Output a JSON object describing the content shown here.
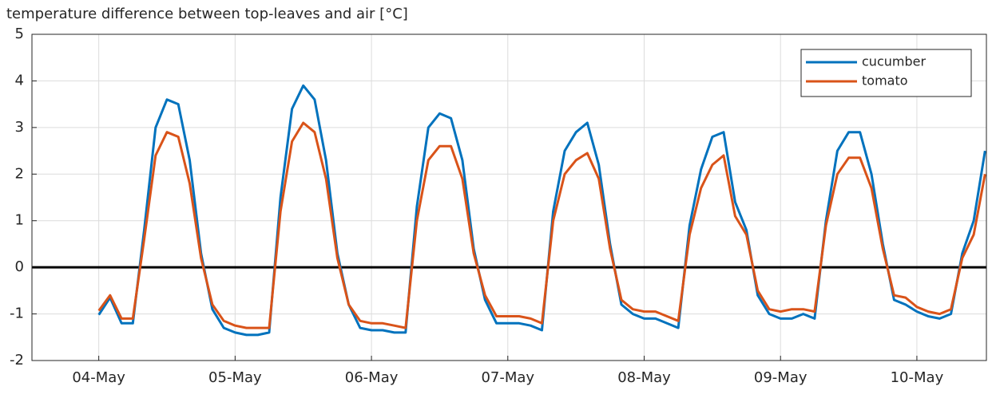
{
  "chart_data": {
    "type": "line",
    "title": "temperature difference between top-leaves and air [°C]",
    "x": [
      4,
      4.083,
      4.167,
      4.25,
      4.333,
      4.417,
      4.5,
      4.583,
      4.667,
      4.75,
      4.833,
      4.917,
      5,
      5.083,
      5.167,
      5.25,
      5.333,
      5.417,
      5.5,
      5.583,
      5.667,
      5.75,
      5.833,
      5.917,
      6,
      6.083,
      6.167,
      6.25,
      6.333,
      6.417,
      6.5,
      6.583,
      6.667,
      6.75,
      6.833,
      6.917,
      7,
      7.083,
      7.167,
      7.25,
      7.333,
      7.417,
      7.5,
      7.583,
      7.667,
      7.75,
      7.833,
      7.917,
      8,
      8.083,
      8.167,
      8.25,
      8.333,
      8.417,
      8.5,
      8.583,
      8.667,
      8.75,
      8.833,
      8.917,
      9,
      9.083,
      9.167,
      9.25,
      9.333,
      9.417,
      9.5,
      9.583,
      9.667,
      9.75,
      9.833,
      9.917,
      10,
      10.083,
      10.167,
      10.25,
      10.333,
      10.417,
      10.5
    ],
    "series": [
      {
        "name": "cucumber",
        "color": "#0072bd",
        "values": [
          -1.02,
          -0.65,
          -1.2,
          -1.2,
          0.8,
          3.0,
          3.6,
          3.5,
          2.3,
          0.3,
          -0.9,
          -1.3,
          -1.4,
          -1.45,
          -1.45,
          -1.4,
          1.5,
          3.4,
          3.9,
          3.6,
          2.3,
          0.3,
          -0.8,
          -1.3,
          -1.35,
          -1.35,
          -1.4,
          -1.4,
          1.3,
          3.0,
          3.3,
          3.2,
          2.3,
          0.4,
          -0.7,
          -1.2,
          -1.2,
          -1.2,
          -1.25,
          -1.35,
          1.2,
          2.5,
          2.9,
          3.1,
          2.2,
          0.5,
          -0.8,
          -1.0,
          -1.1,
          -1.1,
          -1.2,
          -1.3,
          0.9,
          2.1,
          2.8,
          2.9,
          1.4,
          0.8,
          -0.6,
          -1.0,
          -1.1,
          -1.1,
          -1.0,
          -1.1,
          1.0,
          2.5,
          2.9,
          2.9,
          2.0,
          0.5,
          -0.7,
          -0.8,
          -0.95,
          -1.05,
          -1.1,
          -1.0,
          0.3,
          1.0,
          2.5
        ]
      },
      {
        "name": "tomato",
        "color": "#d95319",
        "values": [
          -0.93,
          -0.6,
          -1.1,
          -1.1,
          0.6,
          2.4,
          2.9,
          2.8,
          1.8,
          0.2,
          -0.8,
          -1.15,
          -1.25,
          -1.3,
          -1.3,
          -1.3,
          1.2,
          2.7,
          3.1,
          2.9,
          1.9,
          0.2,
          -0.8,
          -1.15,
          -1.2,
          -1.2,
          -1.25,
          -1.3,
          1.0,
          2.3,
          2.6,
          2.6,
          1.9,
          0.3,
          -0.6,
          -1.05,
          -1.05,
          -1.05,
          -1.1,
          -1.2,
          1.0,
          2.0,
          2.3,
          2.45,
          1.9,
          0.4,
          -0.7,
          -0.9,
          -0.95,
          -0.95,
          -1.05,
          -1.15,
          0.7,
          1.7,
          2.2,
          2.4,
          1.1,
          0.7,
          -0.5,
          -0.9,
          -0.95,
          -0.9,
          -0.9,
          -0.95,
          0.9,
          2.0,
          2.35,
          2.35,
          1.7,
          0.4,
          -0.6,
          -0.65,
          -0.85,
          -0.95,
          -1.0,
          -0.9,
          0.2,
          0.7,
          2.0
        ]
      }
    ],
    "xlim": [
      3.51,
      10.51
    ],
    "xticks": [
      {
        "value": 4,
        "label": "04-May"
      },
      {
        "value": 5,
        "label": "05-May"
      },
      {
        "value": 6,
        "label": "06-May"
      },
      {
        "value": 7,
        "label": "07-May"
      },
      {
        "value": 8,
        "label": "08-May"
      },
      {
        "value": 9,
        "label": "09-May"
      },
      {
        "value": 10,
        "label": "10-May"
      }
    ],
    "ylim": [
      -2,
      5
    ],
    "yticks": [
      -2,
      -1,
      0,
      1,
      2,
      3,
      4,
      5
    ],
    "reference_line": 0,
    "grid": true,
    "legend": "upper right"
  }
}
